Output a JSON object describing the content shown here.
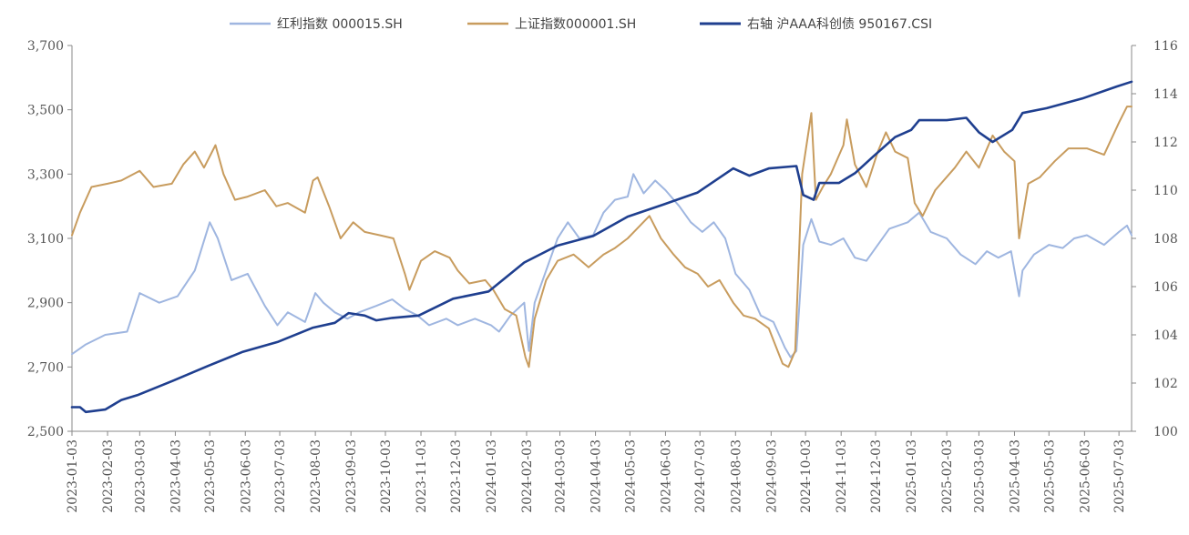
{
  "chart_data": {
    "type": "line",
    "title": "",
    "legend_position": "top",
    "grid": false,
    "y_left": {
      "min": 2500,
      "max": 3700,
      "ticks": [
        "2,500",
        "2,700",
        "2,900",
        "3,100",
        "3,300",
        "3,500",
        "3,700"
      ]
    },
    "y_right": {
      "min": 100,
      "max": 116,
      "ticks": [
        "100",
        "102",
        "104",
        "106",
        "108",
        "110",
        "112",
        "114",
        "116"
      ]
    },
    "x_ticks": [
      "2023-01-03",
      "2023-02-03",
      "2023-03-03",
      "2023-04-03",
      "2023-05-03",
      "2023-06-03",
      "2023-07-03",
      "2023-08-03",
      "2023-09-03",
      "2023-10-03",
      "2023-11-03",
      "2023-12-03",
      "2024-01-03",
      "2024-02-03",
      "2024-03-03",
      "2024-04-03",
      "2024-05-03",
      "2024-06-03",
      "2024-07-03",
      "2024-08-03",
      "2024-09-03",
      "2024-10-03",
      "2024-11-03",
      "2024-12-03",
      "2025-01-03",
      "2025-02-03",
      "2025-03-03",
      "2025-04-03",
      "2025-05-03",
      "2025-06-03",
      "2025-07-03"
    ],
    "series": [
      {
        "name": "红利指数 000015.SH",
        "axis": "left",
        "color": "#9fb6e0",
        "points": [
          [
            "2023-01-03",
            2740
          ],
          [
            "2023-01-15",
            2770
          ],
          [
            "2023-02-01",
            2800
          ],
          [
            "2023-02-20",
            2810
          ],
          [
            "2023-03-03",
            2930
          ],
          [
            "2023-03-20",
            2900
          ],
          [
            "2023-04-05",
            2920
          ],
          [
            "2023-04-20",
            3000
          ],
          [
            "2023-05-03",
            3150
          ],
          [
            "2023-05-10",
            3100
          ],
          [
            "2023-05-22",
            2970
          ],
          [
            "2023-06-05",
            2990
          ],
          [
            "2023-06-20",
            2890
          ],
          [
            "2023-07-01",
            2830
          ],
          [
            "2023-07-10",
            2870
          ],
          [
            "2023-07-25",
            2840
          ],
          [
            "2023-08-03",
            2930
          ],
          [
            "2023-08-10",
            2900
          ],
          [
            "2023-08-20",
            2870
          ],
          [
            "2023-08-31",
            2850
          ],
          [
            "2023-09-10",
            2870
          ],
          [
            "2023-09-25",
            2890
          ],
          [
            "2023-10-09",
            2910
          ],
          [
            "2023-10-20",
            2880
          ],
          [
            "2023-10-31",
            2860
          ],
          [
            "2023-11-10",
            2830
          ],
          [
            "2023-11-25",
            2850
          ],
          [
            "2023-12-05",
            2830
          ],
          [
            "2023-12-20",
            2850
          ],
          [
            "2024-01-03",
            2830
          ],
          [
            "2024-01-10",
            2810
          ],
          [
            "2024-01-20",
            2860
          ],
          [
            "2024-02-01",
            2900
          ],
          [
            "2024-02-05",
            2750
          ],
          [
            "2024-02-10",
            2900
          ],
          [
            "2024-02-20",
            3000
          ],
          [
            "2024-03-01",
            3100
          ],
          [
            "2024-03-10",
            3150
          ],
          [
            "2024-03-20",
            3100
          ],
          [
            "2024-04-01",
            3110
          ],
          [
            "2024-04-10",
            3180
          ],
          [
            "2024-04-20",
            3220
          ],
          [
            "2024-05-01",
            3230
          ],
          [
            "2024-05-06",
            3300
          ],
          [
            "2024-05-15",
            3240
          ],
          [
            "2024-05-25",
            3280
          ],
          [
            "2024-06-03",
            3250
          ],
          [
            "2024-06-15",
            3200
          ],
          [
            "2024-06-25",
            3150
          ],
          [
            "2024-07-05",
            3120
          ],
          [
            "2024-07-15",
            3150
          ],
          [
            "2024-07-25",
            3100
          ],
          [
            "2024-08-03",
            2990
          ],
          [
            "2024-08-15",
            2940
          ],
          [
            "2024-08-25",
            2860
          ],
          [
            "2024-09-05",
            2840
          ],
          [
            "2024-09-15",
            2760
          ],
          [
            "2024-09-20",
            2730
          ],
          [
            "2024-09-25",
            2750
          ],
          [
            "2024-10-01",
            3080
          ],
          [
            "2024-10-08",
            3160
          ],
          [
            "2024-10-15",
            3090
          ],
          [
            "2024-10-25",
            3080
          ],
          [
            "2024-11-05",
            3100
          ],
          [
            "2024-11-15",
            3040
          ],
          [
            "2024-11-25",
            3030
          ],
          [
            "2024-12-05",
            3080
          ],
          [
            "2024-12-15",
            3130
          ],
          [
            "2024-12-31",
            3150
          ],
          [
            "2025-01-10",
            3180
          ],
          [
            "2025-01-20",
            3120
          ],
          [
            "2025-02-03",
            3100
          ],
          [
            "2025-02-15",
            3050
          ],
          [
            "2025-02-28",
            3020
          ],
          [
            "2025-03-10",
            3060
          ],
          [
            "2025-03-20",
            3040
          ],
          [
            "2025-03-31",
            3060
          ],
          [
            "2025-04-07",
            2920
          ],
          [
            "2025-04-10",
            3000
          ],
          [
            "2025-04-20",
            3050
          ],
          [
            "2025-05-03",
            3080
          ],
          [
            "2025-05-15",
            3070
          ],
          [
            "2025-05-25",
            3100
          ],
          [
            "2025-06-05",
            3110
          ],
          [
            "2025-06-20",
            3080
          ],
          [
            "2025-07-03",
            3120
          ],
          [
            "2025-07-10",
            3140
          ],
          [
            "2025-07-14",
            3110
          ]
        ]
      },
      {
        "name": "上证指数000001.SH",
        "axis": "left",
        "color": "#c89c5e",
        "points": [
          [
            "2023-01-03",
            3110
          ],
          [
            "2023-01-10",
            3180
          ],
          [
            "2023-01-20",
            3260
          ],
          [
            "2023-02-03",
            3270
          ],
          [
            "2023-02-15",
            3280
          ],
          [
            "2023-03-03",
            3310
          ],
          [
            "2023-03-15",
            3260
          ],
          [
            "2023-03-31",
            3270
          ],
          [
            "2023-04-10",
            3330
          ],
          [
            "2023-04-20",
            3370
          ],
          [
            "2023-04-28",
            3320
          ],
          [
            "2023-05-08",
            3390
          ],
          [
            "2023-05-15",
            3300
          ],
          [
            "2023-05-25",
            3220
          ],
          [
            "2023-06-05",
            3230
          ],
          [
            "2023-06-20",
            3250
          ],
          [
            "2023-06-30",
            3200
          ],
          [
            "2023-07-10",
            3210
          ],
          [
            "2023-07-25",
            3180
          ],
          [
            "2023-08-01",
            3280
          ],
          [
            "2023-08-05",
            3290
          ],
          [
            "2023-08-15",
            3200
          ],
          [
            "2023-08-25",
            3100
          ],
          [
            "2023-09-05",
            3150
          ],
          [
            "2023-09-15",
            3120
          ],
          [
            "2023-09-28",
            3110
          ],
          [
            "2023-10-10",
            3100
          ],
          [
            "2023-10-20",
            2990
          ],
          [
            "2023-10-24",
            2940
          ],
          [
            "2023-11-03",
            3030
          ],
          [
            "2023-11-15",
            3060
          ],
          [
            "2023-11-28",
            3040
          ],
          [
            "2023-12-05",
            3000
          ],
          [
            "2023-12-15",
            2960
          ],
          [
            "2023-12-29",
            2970
          ],
          [
            "2024-01-05",
            2940
          ],
          [
            "2024-01-15",
            2880
          ],
          [
            "2024-01-25",
            2860
          ],
          [
            "2024-02-02",
            2730
          ],
          [
            "2024-02-05",
            2700
          ],
          [
            "2024-02-10",
            2850
          ],
          [
            "2024-02-20",
            2970
          ],
          [
            "2024-03-01",
            3030
          ],
          [
            "2024-03-15",
            3050
          ],
          [
            "2024-03-28",
            3010
          ],
          [
            "2024-04-10",
            3050
          ],
          [
            "2024-04-20",
            3070
          ],
          [
            "2024-05-01",
            3100
          ],
          [
            "2024-05-20",
            3170
          ],
          [
            "2024-05-30",
            3100
          ],
          [
            "2024-06-10",
            3050
          ],
          [
            "2024-06-20",
            3010
          ],
          [
            "2024-07-01",
            2990
          ],
          [
            "2024-07-10",
            2950
          ],
          [
            "2024-07-20",
            2970
          ],
          [
            "2024-08-01",
            2900
          ],
          [
            "2024-08-10",
            2860
          ],
          [
            "2024-08-20",
            2850
          ],
          [
            "2024-09-01",
            2820
          ],
          [
            "2024-09-13",
            2710
          ],
          [
            "2024-09-18",
            2700
          ],
          [
            "2024-09-24",
            2750
          ],
          [
            "2024-09-30",
            3300
          ],
          [
            "2024-10-08",
            3490
          ],
          [
            "2024-10-12",
            3220
          ],
          [
            "2024-10-18",
            3260
          ],
          [
            "2024-10-25",
            3300
          ],
          [
            "2024-11-05",
            3390
          ],
          [
            "2024-11-08",
            3470
          ],
          [
            "2024-11-15",
            3330
          ],
          [
            "2024-11-25",
            3260
          ],
          [
            "2024-12-05",
            3370
          ],
          [
            "2024-12-12",
            3430
          ],
          [
            "2024-12-20",
            3370
          ],
          [
            "2024-12-31",
            3350
          ],
          [
            "2025-01-06",
            3210
          ],
          [
            "2025-01-13",
            3170
          ],
          [
            "2025-01-24",
            3250
          ],
          [
            "2025-02-10",
            3320
          ],
          [
            "2025-02-20",
            3370
          ],
          [
            "2025-03-03",
            3320
          ],
          [
            "2025-03-15",
            3420
          ],
          [
            "2025-03-25",
            3370
          ],
          [
            "2025-04-03",
            3340
          ],
          [
            "2025-04-07",
            3100
          ],
          [
            "2025-04-15",
            3270
          ],
          [
            "2025-04-25",
            3290
          ],
          [
            "2025-05-08",
            3340
          ],
          [
            "2025-05-20",
            3380
          ],
          [
            "2025-06-05",
            3380
          ],
          [
            "2025-06-20",
            3360
          ],
          [
            "2025-07-03",
            3460
          ],
          [
            "2025-07-10",
            3510
          ],
          [
            "2025-07-14",
            3510
          ]
        ]
      },
      {
        "name": "右轴 沪AAA科创债 950167.CSI",
        "axis": "right",
        "color": "#1f3f8f",
        "points": [
          [
            "2023-01-03",
            101.0
          ],
          [
            "2023-01-10",
            101.0
          ],
          [
            "2023-01-15",
            100.8
          ],
          [
            "2023-02-01",
            100.9
          ],
          [
            "2023-02-15",
            101.3
          ],
          [
            "2023-03-01",
            101.5
          ],
          [
            "2023-04-01",
            102.1
          ],
          [
            "2023-05-01",
            102.7
          ],
          [
            "2023-06-01",
            103.3
          ],
          [
            "2023-07-01",
            103.7
          ],
          [
            "2023-08-01",
            104.3
          ],
          [
            "2023-08-20",
            104.5
          ],
          [
            "2023-09-01",
            104.9
          ],
          [
            "2023-09-15",
            104.8
          ],
          [
            "2023-09-25",
            104.6
          ],
          [
            "2023-10-09",
            104.7
          ],
          [
            "2023-11-01",
            104.8
          ],
          [
            "2023-12-01",
            105.5
          ],
          [
            "2024-01-01",
            105.8
          ],
          [
            "2024-02-01",
            107.0
          ],
          [
            "2024-03-01",
            107.7
          ],
          [
            "2024-04-01",
            108.1
          ],
          [
            "2024-05-01",
            108.9
          ],
          [
            "2024-06-01",
            109.4
          ],
          [
            "2024-07-01",
            109.9
          ],
          [
            "2024-08-01",
            110.9
          ],
          [
            "2024-08-15",
            110.6
          ],
          [
            "2024-09-01",
            110.9
          ],
          [
            "2024-09-25",
            111.0
          ],
          [
            "2024-10-01",
            109.8
          ],
          [
            "2024-10-10",
            109.6
          ],
          [
            "2024-10-15",
            110.3
          ],
          [
            "2024-11-01",
            110.3
          ],
          [
            "2024-11-15",
            110.7
          ],
          [
            "2024-12-01",
            111.4
          ],
          [
            "2024-12-20",
            112.2
          ],
          [
            "2025-01-03",
            112.5
          ],
          [
            "2025-01-10",
            112.9
          ],
          [
            "2025-02-03",
            112.9
          ],
          [
            "2025-02-20",
            113.0
          ],
          [
            "2025-03-03",
            112.4
          ],
          [
            "2025-03-15",
            112.0
          ],
          [
            "2025-04-01",
            112.5
          ],
          [
            "2025-04-10",
            113.2
          ],
          [
            "2025-05-01",
            113.4
          ],
          [
            "2025-06-01",
            113.8
          ],
          [
            "2025-07-01",
            114.3
          ],
          [
            "2025-07-14",
            114.5
          ]
        ]
      }
    ]
  }
}
